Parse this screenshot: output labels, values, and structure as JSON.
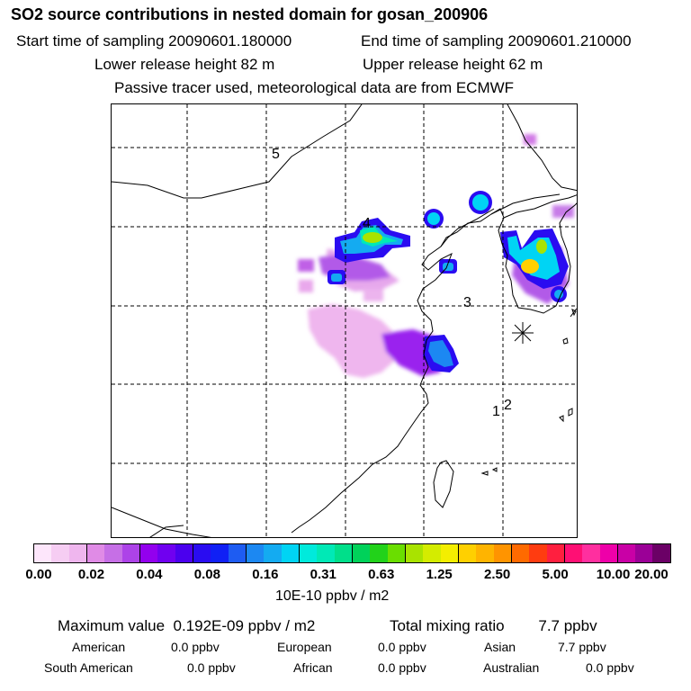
{
  "header": {
    "title": "SO2 source contributions in nested domain for gosan_200906",
    "start_time": "Start time of sampling 20090601.180000",
    "end_time": "End time of sampling 20090601.210000",
    "lower_height": "Lower release height   82 m",
    "upper_height": "Upper release height   62 m",
    "note": "Passive tracer used, meteorological data are from ECMWF"
  },
  "map": {
    "labels": {
      "l5": "5",
      "l4": "4",
      "l3": "3",
      "l1": "1",
      "l2": "2"
    },
    "release_site_icon": "asterisk-icon"
  },
  "colorbar": {
    "ticks": [
      "0.00",
      "0.02",
      "0.04",
      "0.08",
      "0.16",
      "0.31",
      "0.63",
      "1.25",
      "2.50",
      "5.00",
      "10.00",
      "20.00"
    ],
    "colors": [
      "#fde6fb",
      "#f6cdf3",
      "#efb6ee",
      "#e08be6",
      "#c66fe6",
      "#ad43e8",
      "#9300ee",
      "#7000f0",
      "#4b00ee",
      "#2a0cf1",
      "#1020f5",
      "#1e5cf2",
      "#1c88f2",
      "#14abf1",
      "#00d4f4",
      "#00eadc",
      "#00e9b6",
      "#00df8a",
      "#00d25a",
      "#22d21a",
      "#6ade00",
      "#a9e300",
      "#d4ec00",
      "#f4ee00",
      "#ffd000",
      "#ffb400",
      "#ff9400",
      "#ff6a00",
      "#ff3c10",
      "#ff1f3f",
      "#ff0f74",
      "#ff2f9f",
      "#ee00a9",
      "#c900a6",
      "#9b0097",
      "#6b0066"
    ],
    "units": "10E-10 ppbv / m2"
  },
  "summary": {
    "max_label": "Maximum value",
    "max_value": "0.192E-09 ppbv / m2",
    "total_label": "Total mixing ratio",
    "total_value": "7.7 ppbv",
    "regions": [
      {
        "name": "American",
        "value": "0.0 ppbv"
      },
      {
        "name": "European",
        "value": "0.0 ppbv"
      },
      {
        "name": "Asian",
        "value": "7.7 ppbv"
      },
      {
        "name": "South American",
        "value": "0.0 ppbv"
      },
      {
        "name": "African",
        "value": "0.0 ppbv"
      },
      {
        "name": "Australian",
        "value": "0.0 ppbv"
      }
    ]
  }
}
